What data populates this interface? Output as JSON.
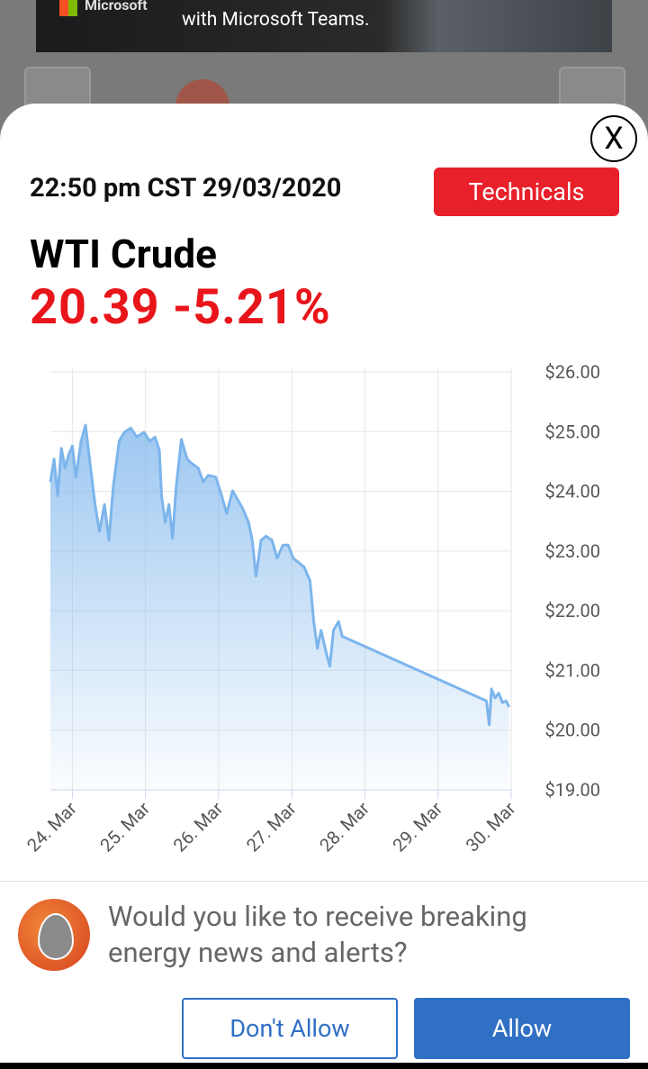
{
  "ad": {
    "brand": "Microsoft",
    "text": "with Microsoft Teams."
  },
  "modal": {
    "close": "X",
    "timestamp": "22:50 pm CST 29/03/2020",
    "button": "Technicals",
    "instrument": "WTI Crude",
    "price": "20.39 -5.21%"
  },
  "chart_data": {
    "type": "line",
    "color": "#7cb5ec",
    "grid": true,
    "x": [
      23.7,
      23.75,
      23.8,
      23.85,
      23.9,
      23.95,
      24.0,
      24.05,
      24.12,
      24.18,
      24.25,
      24.31,
      24.37,
      24.44,
      24.5,
      24.56,
      24.64,
      24.71,
      24.8,
      24.88,
      24.98,
      25.06,
      25.13,
      25.19,
      25.22,
      25.27,
      25.32,
      25.37,
      25.42,
      25.49,
      25.57,
      25.64,
      25.72,
      25.79,
      25.86,
      25.96,
      26.04,
      26.11,
      26.19,
      26.26,
      26.33,
      26.41,
      26.46,
      26.51,
      26.58,
      26.65,
      26.73,
      26.8,
      26.88,
      26.95,
      27.02,
      27.1,
      27.17,
      27.25,
      27.3,
      27.35,
      27.4,
      27.47,
      27.52,
      27.57,
      27.64,
      27.69,
      29.66,
      29.7,
      29.73,
      29.78,
      29.83,
      29.88,
      29.93,
      29.97
    ],
    "series": [
      {
        "values": [
          24.16,
          24.54,
          23.93,
          24.72,
          24.39,
          24.61,
          24.76,
          24.24,
          24.84,
          25.11,
          24.39,
          23.78,
          23.33,
          23.78,
          23.18,
          24.08,
          24.84,
          24.99,
          25.06,
          24.91,
          24.99,
          24.84,
          24.91,
          24.69,
          23.93,
          23.48,
          23.78,
          23.21,
          24.08,
          24.87,
          24.54,
          24.46,
          24.39,
          24.16,
          24.27,
          24.24,
          23.93,
          23.63,
          24.01,
          23.86,
          23.71,
          23.48,
          23.18,
          22.58,
          23.18,
          23.25,
          23.18,
          22.88,
          23.1,
          23.1,
          22.88,
          22.8,
          22.73,
          22.5,
          21.82,
          21.37,
          21.67,
          21.3,
          21.07,
          21.67,
          21.82,
          21.57,
          20.49,
          20.09,
          20.69,
          20.54,
          20.62,
          20.46,
          20.49,
          20.39
        ]
      }
    ],
    "xlim": [
      23.7,
      30.0
    ],
    "xticks": [
      {
        "value": 24,
        "label": "24. Mar"
      },
      {
        "value": 25,
        "label": "25. Mar"
      },
      {
        "value": 26,
        "label": "26. Mar"
      },
      {
        "value": 27,
        "label": "27. Mar"
      },
      {
        "value": 28,
        "label": "28. Mar"
      },
      {
        "value": 29,
        "label": "29. Mar"
      },
      {
        "value": 30,
        "label": "30. Mar"
      }
    ],
    "ylim": [
      19,
      26
    ],
    "yticks": [
      {
        "value": 19,
        "label": "$19.00"
      },
      {
        "value": 20,
        "label": "$20.00"
      },
      {
        "value": 21,
        "label": "$21.00"
      },
      {
        "value": 22,
        "label": "$22.00"
      },
      {
        "value": 23,
        "label": "$23.00"
      },
      {
        "value": 24,
        "label": "$24.00"
      },
      {
        "value": 25,
        "label": "$25.00"
      },
      {
        "value": 26,
        "label": "$26.00"
      }
    ]
  },
  "prompt": {
    "message": "Would you like to receive breaking energy news and alerts?",
    "deny": "Don't Allow",
    "allow": "Allow"
  }
}
